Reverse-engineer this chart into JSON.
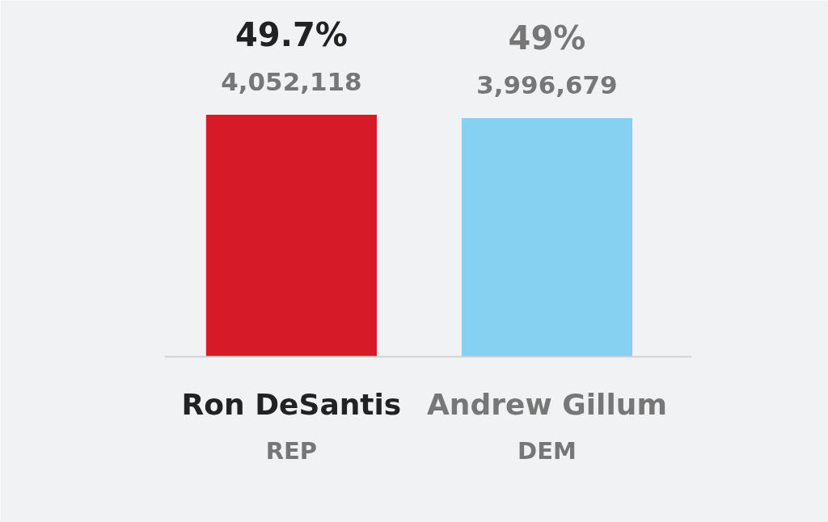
{
  "chart_data": {
    "type": "bar",
    "categories": [
      "Ron DeSantis",
      "Andrew Gillum"
    ],
    "values": [
      49.7,
      49
    ],
    "colors": [
      "#d71a28",
      "#86d0f2"
    ],
    "value_labels": [
      "49.7%",
      "49%"
    ],
    "annotations": [
      {
        "text": "4,052,118",
        "x": "Ron DeSantis",
        "y": 49.7
      },
      {
        "text": "3,996,679",
        "x": "Andrew Gillum",
        "y": 49
      },
      "REP",
      "DEM"
    ]
  }
}
